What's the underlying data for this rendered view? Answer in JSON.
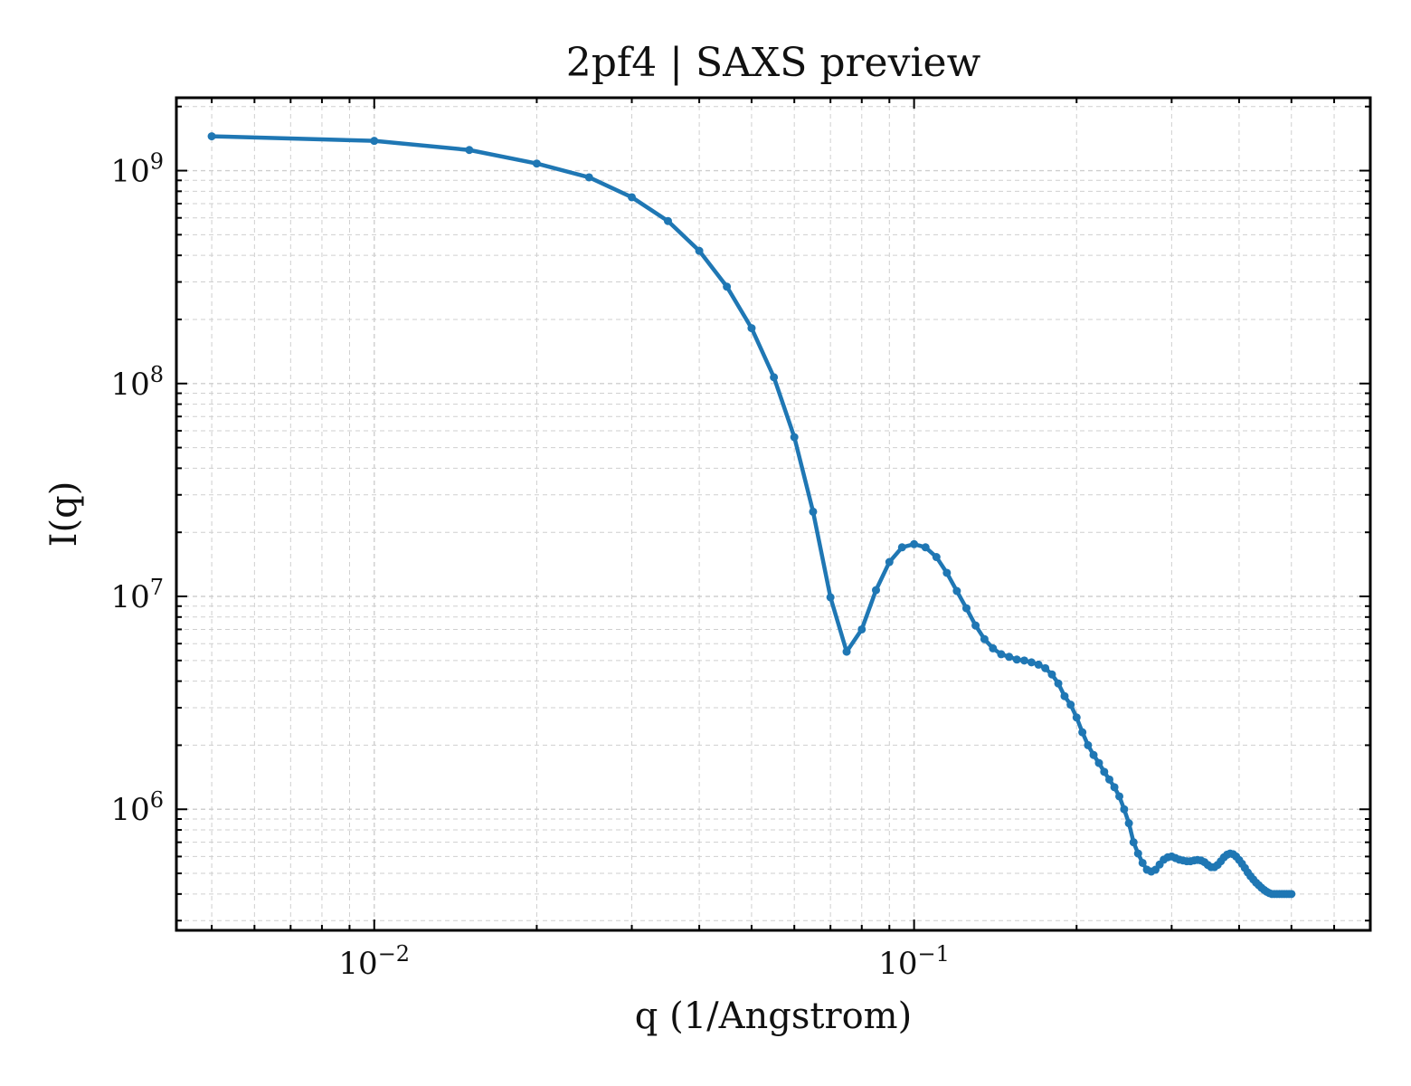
{
  "chart_data": {
    "type": "line",
    "title": "2pf4 | SAXS preview",
    "xlabel": "q (1/Angstrom)",
    "ylabel": "I(q)",
    "xscale": "log",
    "yscale": "log",
    "xlim": [
      0.0043,
      0.7
    ],
    "ylim": [
      270000,
      2200000000
    ],
    "grid": true,
    "markers": true,
    "color": "#1f77b4",
    "xticks": [
      {
        "value": 0.01,
        "base": "10",
        "exp": "−2"
      },
      {
        "value": 0.1,
        "base": "10",
        "exp": "−1"
      }
    ],
    "yticks": [
      {
        "value": 1000000,
        "base": "10",
        "exp": "6"
      },
      {
        "value": 10000000,
        "base": "10",
        "exp": "7"
      },
      {
        "value": 100000000,
        "base": "10",
        "exp": "8"
      },
      {
        "value": 1000000000,
        "base": "10",
        "exp": "9"
      }
    ],
    "series": [
      {
        "x": [
          0.005,
          0.01,
          0.015,
          0.02,
          0.025,
          0.03,
          0.035,
          0.04,
          0.045,
          0.05,
          0.055,
          0.06,
          0.065,
          0.07,
          0.075,
          0.08,
          0.085,
          0.09,
          0.095,
          0.1,
          0.105,
          0.11,
          0.115,
          0.12,
          0.125,
          0.13,
          0.135,
          0.14,
          0.145,
          0.15,
          0.155,
          0.16,
          0.165,
          0.17,
          0.175,
          0.18,
          0.185,
          0.19,
          0.195,
          0.2,
          0.205,
          0.21,
          0.215,
          0.22,
          0.225,
          0.23,
          0.235,
          0.24,
          0.245,
          0.25,
          0.255,
          0.26,
          0.265,
          0.27,
          0.275,
          0.28,
          0.285,
          0.29,
          0.295,
          0.3,
          0.305,
          0.31,
          0.315,
          0.32,
          0.325,
          0.33,
          0.335,
          0.34,
          0.345,
          0.35,
          0.355,
          0.36,
          0.365,
          0.37,
          0.375,
          0.38,
          0.385,
          0.39,
          0.395,
          0.4,
          0.405,
          0.41,
          0.415,
          0.42,
          0.425,
          0.43,
          0.435,
          0.44,
          0.445,
          0.45,
          0.455,
          0.46,
          0.465,
          0.47,
          0.475,
          0.48,
          0.485,
          0.49,
          0.495,
          0.5
        ],
        "y": [
          1450000000,
          1380000000,
          1250000000,
          1080000000,
          930000000,
          750000000,
          580000000,
          420000000,
          285000000,
          182000000,
          107000000,
          56000000,
          25000000,
          9900000,
          5500000,
          7000000,
          10700000,
          14500000,
          17000000,
          17600000,
          17000000,
          15300000,
          12900000,
          10600000,
          8800000,
          7300000,
          6300000,
          5700000,
          5350000,
          5200000,
          5050000,
          5000000,
          4900000,
          4780000,
          4600000,
          4300000,
          3900000,
          3400000,
          3100000,
          2700000,
          2300000,
          2000000,
          1800000,
          1650000,
          1500000,
          1380000,
          1270000,
          1150000,
          1000000,
          860000,
          700000,
          620000,
          560000,
          520000,
          510000,
          520000,
          550000,
          580000,
          595000,
          600000,
          590000,
          580000,
          575000,
          570000,
          570000,
          575000,
          578000,
          575000,
          565000,
          548000,
          535000,
          535000,
          548000,
          570000,
          595000,
          612000,
          620000,
          615000,
          600000,
          578000,
          555000,
          530000,
          505000,
          485000,
          468000,
          452000,
          440000,
          428000,
          418000,
          410000,
          404000,
          400000,
          400000,
          400000,
          400000,
          400000,
          400000,
          400000,
          400000,
          400000
        ]
      }
    ]
  }
}
